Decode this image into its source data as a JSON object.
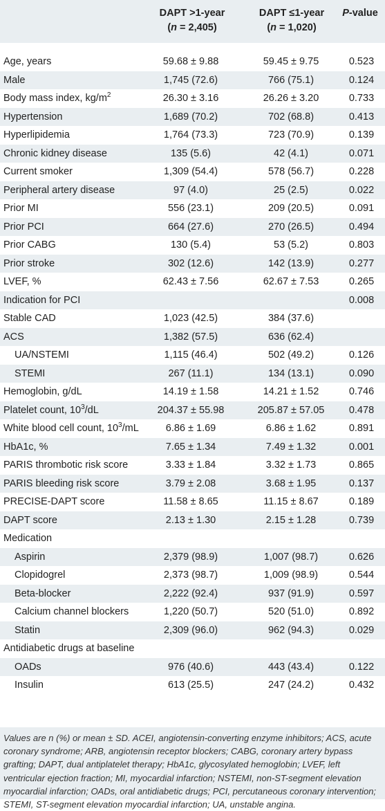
{
  "table": {
    "header": {
      "col1_line1": "DAPT >1-year",
      "col1_line2_pre": "(",
      "col1_line2_n": "n",
      "col1_line2_post": " = 2,405)",
      "col2_line1": "DAPT ≤1-year",
      "col2_line2_pre": "(",
      "col2_line2_n": "n",
      "col2_line2_post": " = 1,020)",
      "col3_italic": "P",
      "col3_rest": "-value"
    },
    "rows": [
      {
        "label": "Age, years",
        "v1": "59.68 ± 9.88",
        "v2": "59.45 ± 9.75",
        "p": "0.523"
      },
      {
        "label": "Male",
        "v1": "1,745 (72.6)",
        "v2": "766 (75.1)",
        "p": "0.124"
      },
      {
        "label": "Body mass index, kg/m",
        "sup": "2",
        "v1": "26.30 ± 3.16",
        "v2": "26.26 ± 3.20",
        "p": "0.733"
      },
      {
        "label": "Hypertension",
        "v1": "1,689 (70.2)",
        "v2": "702 (68.8)",
        "p": "0.413"
      },
      {
        "label": "Hyperlipidemia",
        "v1": "1,764 (73.3)",
        "v2": "723 (70.9)",
        "p": "0.139"
      },
      {
        "label": "Chronic kidney disease",
        "v1": "135 (5.6)",
        "v2": "42 (4.1)",
        "p": "0.071"
      },
      {
        "label": "Current smoker",
        "v1": "1,309 (54.4)",
        "v2": "578 (56.7)",
        "p": "0.228"
      },
      {
        "label": "Peripheral artery disease",
        "v1": "97 (4.0)",
        "v2": "25 (2.5)",
        "p": "0.022"
      },
      {
        "label": "Prior MI",
        "v1": "556 (23.1)",
        "v2": "209 (20.5)",
        "p": "0.091"
      },
      {
        "label": "Prior PCI",
        "v1": "664 (27.6)",
        "v2": "270 (26.5)",
        "p": "0.494"
      },
      {
        "label": "Prior CABG",
        "v1": "130 (5.4)",
        "v2": "53 (5.2)",
        "p": "0.803"
      },
      {
        "label": "Prior stroke",
        "v1": "302 (12.6)",
        "v2": "142 (13.9)",
        "p": "0.277"
      },
      {
        "label": "LVEF, %",
        "v1": "62.43 ± 7.56",
        "v2": "62.67 ± 7.53",
        "p": "0.265"
      },
      {
        "label": "Indication for PCI",
        "v1": "",
        "v2": "",
        "p": "0.008"
      },
      {
        "label": "Stable CAD",
        "v1": "1,023 (42.5)",
        "v2": "384 (37.6)",
        "p": ""
      },
      {
        "label": "ACS",
        "v1": "1,382 (57.5)",
        "v2": "636 (62.4)",
        "p": ""
      },
      {
        "label": "UA/NSTEMI",
        "indent": true,
        "v1": "1,115 (46.4)",
        "v2": "502 (49.2)",
        "p": "0.126"
      },
      {
        "label": "STEMI",
        "indent": true,
        "v1": "267 (11.1)",
        "v2": "134 (13.1)",
        "p": "0.090"
      },
      {
        "label": "Hemoglobin, g/dL",
        "v1": "14.19 ± 1.58",
        "v2": "14.21 ± 1.52",
        "p": "0.746"
      },
      {
        "label": "Platelet count, 10",
        "sup": "3",
        "label_post": "/dL",
        "v1": "204.37 ± 55.98",
        "v2": "205.87 ± 57.05",
        "p": "0.478"
      },
      {
        "label": "White blood cell count, 10",
        "sup": "3",
        "label_post": "/mL",
        "v1": "6.86 ± 1.69",
        "v2": "6.86 ± 1.62",
        "p": "0.891"
      },
      {
        "label": "HbA1c, %",
        "v1": "7.65 ± 1.34",
        "v2": "7.49 ± 1.32",
        "p": "0.001"
      },
      {
        "label": "PARIS thrombotic risk score",
        "v1": "3.33 ± 1.84",
        "v2": "3.32 ± 1.73",
        "p": "0.865"
      },
      {
        "label": "PARIS bleeding risk score",
        "v1": "3.79 ± 2.08",
        "v2": "3.68 ± 1.95",
        "p": "0.137"
      },
      {
        "label": "PRECISE-DAPT score",
        "v1": "11.58 ± 8.65",
        "v2": "11.15 ± 8.67",
        "p": "0.189"
      },
      {
        "label": "DAPT score",
        "v1": "2.13 ± 1.30",
        "v2": "2.15 ± 1.28",
        "p": "0.739"
      },
      {
        "label": "Medication",
        "v1": "",
        "v2": "",
        "p": ""
      },
      {
        "label": "Aspirin",
        "indent": true,
        "v1": "2,379 (98.9)",
        "v2": "1,007 (98.7)",
        "p": "0.626"
      },
      {
        "label": "Clopidogrel",
        "indent": true,
        "v1": "2,373 (98.7)",
        "v2": "1,009 (98.9)",
        "p": "0.544"
      },
      {
        "label": "Beta-blocker",
        "indent": true,
        "v1": "2,222 (92.4)",
        "v2": "937 (91.9)",
        "p": "0.597"
      },
      {
        "label": "Calcium channel blockers",
        "indent": true,
        "v1": "1,220 (50.7)",
        "v2": "520 (51.0)",
        "p": "0.892"
      },
      {
        "label": "Statin",
        "indent": true,
        "v1": "2,309 (96.0)",
        "v2": "962 (94.3)",
        "p": "0.029"
      },
      {
        "label": "Antidiabetic drugs at baseline",
        "v1": "",
        "v2": "",
        "p": ""
      },
      {
        "label": "OADs",
        "indent": true,
        "v1": "976 (40.6)",
        "v2": "443 (43.4)",
        "p": "0.122"
      },
      {
        "label": "Insulin",
        "indent": true,
        "v1": "613 (25.5)",
        "v2": "247 (24.2)",
        "p": "0.432"
      }
    ],
    "footnote": "Values are n (%) or mean ± SD. ACEI, angiotensin-converting enzyme inhibitors; ACS, acute coronary syndrome; ARB, angiotensin receptor blockers; CABG, coronary artery bypass grafting; DAPT, dual antiplatelet therapy; HbA1c, glycosylated hemoglobin; LVEF, left ventricular ejection fraction; MI, myocardial infarction; NSTEMI, non-ST-segment elevation myocardial infarction; OADs, oral antidiabetic drugs; PCI, percutaneous coronary intervention; STEMI, ST-segment elevation myocardial infarction; UA, unstable angina."
  },
  "colors": {
    "shade": "#e9eef1",
    "text": "#222222"
  }
}
